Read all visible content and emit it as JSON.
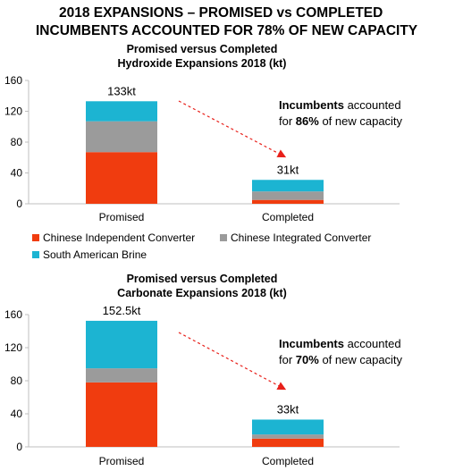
{
  "header": {
    "line1": "2018 EXPANSIONS – PROMISED vs COMPLETED",
    "line2": "INCUMBENTS ACCOUNTED FOR 78% OF NEW CAPACITY"
  },
  "colors": {
    "chinese_independent": "#f03c0f",
    "chinese_integrated": "#9b9b9b",
    "south_american": "#1cb4d2",
    "arrow": "#e8201a"
  },
  "legend": {
    "chinese_independent": "Chinese Independent Converter",
    "chinese_integrated": "Chinese Integrated Converter",
    "south_american": "South American Brine"
  },
  "chart_data": [
    {
      "type": "bar",
      "stacked": true,
      "title": "Promised versus Completed",
      "subtitle": "Hydroxide Expansions 2018 (kt)",
      "categories": [
        "Promised",
        "Completed"
      ],
      "ylim": [
        0,
        160
      ],
      "yticks": [
        0,
        40,
        80,
        120,
        160
      ],
      "series": [
        {
          "name": "Chinese Independent Converter",
          "values": [
            67,
            5
          ]
        },
        {
          "name": "Chinese Integrated Converter",
          "values": [
            40,
            11
          ]
        },
        {
          "name": "South American Brine",
          "values": [
            26,
            15
          ]
        }
      ],
      "totals_labels": [
        "133kt",
        "31kt"
      ],
      "annotation": {
        "prefix": "",
        "bold1": "Incumbents",
        "mid": " accounted",
        "line2_prefix": "for ",
        "bold2": "86%",
        "line2_suffix": " of new capacity"
      }
    },
    {
      "type": "bar",
      "stacked": true,
      "title": "Promised versus Completed",
      "subtitle": "Carbonate Expansions 2018 (kt)",
      "categories": [
        "Promised",
        "Completed"
      ],
      "ylim": [
        0,
        160
      ],
      "yticks": [
        0,
        40,
        80,
        120,
        160
      ],
      "series": [
        {
          "name": "Chinese Independent Converter",
          "values": [
            78,
            10
          ]
        },
        {
          "name": "Chinese Integrated Converter",
          "values": [
            17,
            5
          ]
        },
        {
          "name": "South American Brine",
          "values": [
            57.5,
            18
          ]
        }
      ],
      "totals_labels": [
        "152.5kt",
        "33kt"
      ],
      "annotation": {
        "prefix": "",
        "bold1": "Incumbents",
        "mid": " accounted",
        "line2_prefix": "for ",
        "bold2": "70%",
        "line2_suffix": " of new capacity"
      }
    }
  ]
}
